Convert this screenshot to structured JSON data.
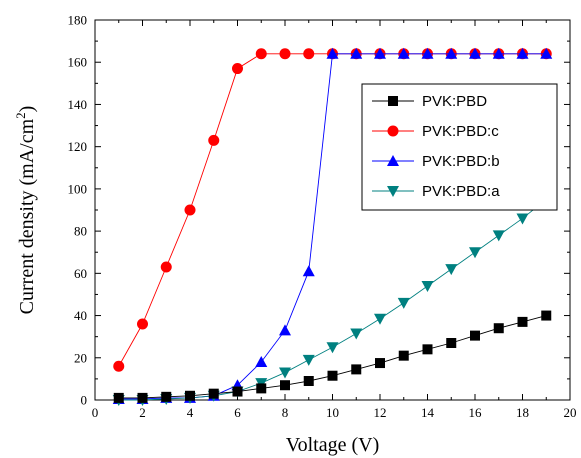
{
  "chart_data": {
    "type": "line",
    "xlabel": "Voltage (V)",
    "ylabel": "Current density (mA/cm",
    "ylabel_sup": "2",
    "ylabel_close": ")",
    "xlim": [
      0,
      20
    ],
    "ylim": [
      0,
      180
    ],
    "xticks": [
      0,
      2,
      4,
      6,
      8,
      10,
      12,
      14,
      16,
      18,
      20
    ],
    "yticks": [
      0,
      20,
      40,
      60,
      80,
      100,
      120,
      140,
      160,
      180
    ],
    "grid": false,
    "legend_position": "top-right",
    "series": [
      {
        "name": "PVK:PBD",
        "marker": "square",
        "marker_color": "#000000",
        "line_color": "#000000",
        "x": [
          1,
          2,
          3,
          4,
          5,
          6,
          7,
          8,
          9,
          10,
          11,
          12,
          13,
          14,
          15,
          16,
          17,
          18,
          19
        ],
        "y": [
          1,
          1,
          1.5,
          2,
          3,
          4,
          5.5,
          7,
          9,
          11.5,
          14.5,
          17.5,
          21,
          24,
          27,
          30.5,
          34,
          37,
          40
        ]
      },
      {
        "name": "PVK:PBD:c",
        "marker": "circle",
        "marker_color": "#ff0000",
        "line_color": "#ff0000",
        "x": [
          1,
          2,
          3,
          4,
          5,
          6,
          7,
          8,
          9,
          10,
          11,
          12,
          13,
          14,
          15,
          16,
          17,
          18,
          19
        ],
        "y": [
          16,
          36,
          63,
          90,
          123,
          157,
          164,
          164,
          164,
          164,
          164,
          164,
          164,
          164,
          164,
          164,
          164,
          164,
          164
        ]
      },
      {
        "name": "PVK:PBD:b",
        "marker": "triangle-up",
        "marker_color": "#0000ff",
        "line_color": "#0000ff",
        "x": [
          1,
          2,
          3,
          4,
          5,
          6,
          7,
          8,
          9,
          10,
          11,
          12,
          13,
          14,
          15,
          16,
          17,
          18,
          19
        ],
        "y": [
          0.5,
          0.5,
          1,
          1,
          2,
          7,
          18,
          33,
          61,
          164,
          164,
          164,
          164,
          164,
          164,
          164,
          164,
          164,
          164
        ]
      },
      {
        "name": "PVK:PBD:a",
        "marker": "triangle-down",
        "marker_color": "#008080",
        "line_color": "#008080",
        "x": [
          1,
          2,
          3,
          4,
          5,
          6,
          7,
          8,
          9,
          10,
          11,
          12,
          13,
          14,
          15,
          16,
          17,
          18,
          19
        ],
        "y": [
          0,
          0,
          0.5,
          1,
          2,
          4,
          8,
          13,
          19,
          25,
          31.5,
          38.5,
          46,
          54,
          62,
          70,
          78,
          86,
          95
        ]
      }
    ]
  }
}
